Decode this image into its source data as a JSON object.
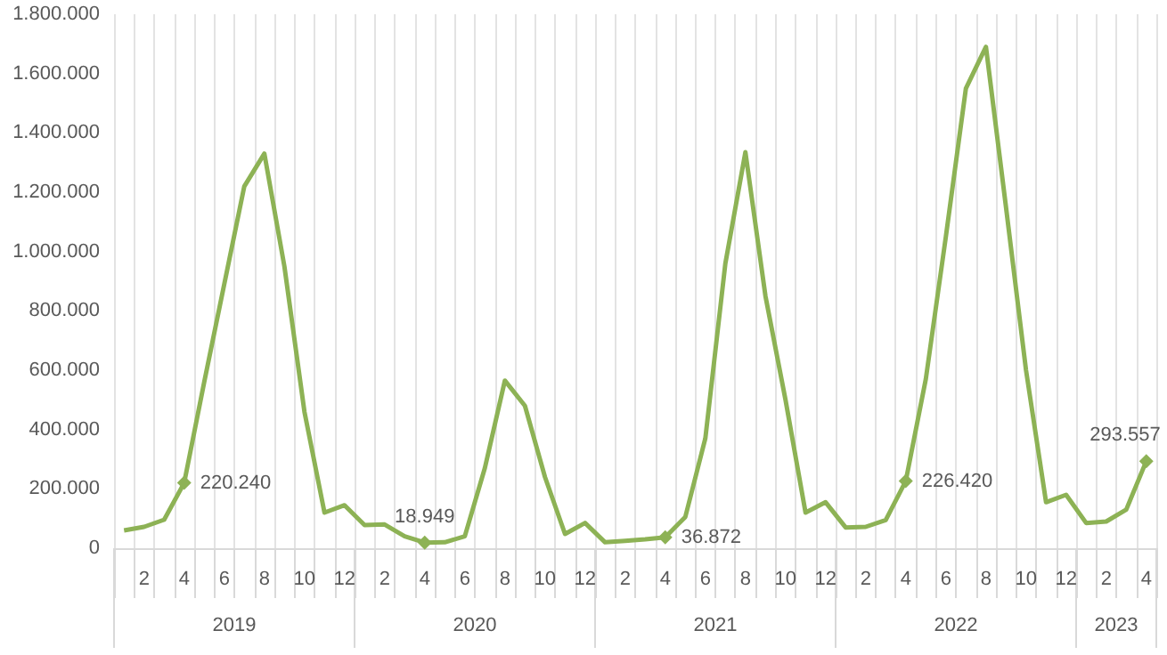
{
  "chart_data": {
    "type": "line",
    "categories": [
      null,
      "2",
      null,
      "4",
      null,
      "6",
      null,
      "8",
      null,
      "10",
      null,
      "12",
      null,
      "2",
      null,
      "4",
      null,
      "6",
      null,
      "8",
      null,
      "10",
      null,
      "12",
      null,
      "2",
      null,
      "4",
      null,
      "6",
      null,
      "8",
      null,
      "10",
      null,
      "12",
      null,
      "2",
      null,
      "4",
      null,
      "6",
      null,
      "8",
      null,
      "10",
      null,
      "12",
      null,
      "2",
      null,
      "4"
    ],
    "annotations": [
      "2019",
      "2020",
      "2021",
      "2022",
      "2023"
    ],
    "series": [
      {
        "color": "#8db255",
        "values": [
          60000,
          72000,
          96000,
          220240,
          560000,
          890000,
          1220000,
          1330000,
          950000,
          460000,
          120000,
          145000,
          78000,
          80000,
          40000,
          18949,
          20000,
          40000,
          270000,
          565000,
          480000,
          240000,
          48000,
          85000,
          20000,
          25000,
          30000,
          36872,
          105000,
          370000,
          960000,
          1335000,
          850000,
          500000,
          120000,
          155000,
          70000,
          72000,
          95000,
          226420,
          570000,
          1050000,
          1550000,
          1690000,
          1150000,
          600000,
          155000,
          180000,
          85000,
          90000,
          130000,
          293557
        ],
        "value_labels": [
          null,
          null,
          null,
          "220.240",
          null,
          null,
          null,
          null,
          null,
          null,
          null,
          null,
          null,
          null,
          null,
          "18.949",
          null,
          null,
          null,
          null,
          null,
          null,
          null,
          null,
          null,
          null,
          null,
          "36.872",
          null,
          null,
          null,
          null,
          null,
          null,
          null,
          null,
          null,
          null,
          null,
          "226.420",
          null,
          null,
          null,
          null,
          null,
          null,
          null,
          null,
          null,
          null,
          null,
          "293.557"
        ]
      }
    ],
    "ylim": [
      0,
      1800000
    ],
    "yticks": [
      {
        "value": 0,
        "label": "0"
      },
      {
        "value": 200000,
        "label": "200.000"
      },
      {
        "value": 400000,
        "label": "400.000"
      },
      {
        "value": 600000,
        "label": "600.000"
      },
      {
        "value": 800000,
        "label": "800.000"
      },
      {
        "value": 1000000,
        "label": "1.000.000"
      },
      {
        "value": 1200000,
        "label": "1.200.000"
      },
      {
        "value": 1400000,
        "label": "1.400.000"
      },
      {
        "value": 1600000,
        "label": "1.600.000"
      },
      {
        "value": 1800000,
        "label": "1.800.000"
      }
    ],
    "grid": "x",
    "line_style": "solid"
  }
}
